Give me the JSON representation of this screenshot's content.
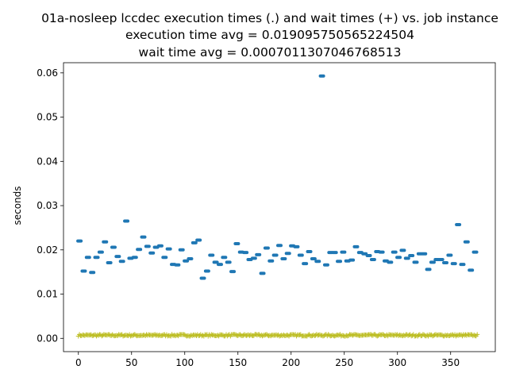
{
  "chart_data": {
    "type": "scatter",
    "title": [
      "01a-nosleep lccdec execution times (.) and wait times (+) vs. job instance",
      "execution time avg = 0.019095750565224504",
      "wait time avg = 0.0007011307046768513"
    ],
    "xlabel": "",
    "ylabel": "seconds",
    "xlim": [
      -14,
      392
    ],
    "ylim": [
      -0.003,
      0.0623
    ],
    "x_ticks": [
      0,
      50,
      100,
      150,
      200,
      250,
      300,
      350
    ],
    "y_ticks": [
      0.0,
      0.01,
      0.02,
      0.03,
      0.04,
      0.05,
      0.06
    ],
    "y_tick_labels": [
      "0.00",
      "0.01",
      "0.02",
      "0.03",
      "0.04",
      "0.05",
      "0.06"
    ],
    "grid": false,
    "series": [
      {
        "marker": ".",
        "color": "#1f77b4",
        "points": [
          [
            1,
            0.022
          ],
          [
            5,
            0.0152
          ],
          [
            9,
            0.0183
          ],
          [
            13,
            0.0149
          ],
          [
            17,
            0.0183
          ],
          [
            21,
            0.0195
          ],
          [
            25,
            0.0218
          ],
          [
            29,
            0.0171
          ],
          [
            33,
            0.0206
          ],
          [
            37,
            0.0185
          ],
          [
            41,
            0.0174
          ],
          [
            45,
            0.0265
          ],
          [
            49,
            0.0181
          ],
          [
            53,
            0.0183
          ],
          [
            57,
            0.0201
          ],
          [
            61,
            0.0229
          ],
          [
            65,
            0.0208
          ],
          [
            69,
            0.0193
          ],
          [
            73,
            0.0206
          ],
          [
            77,
            0.0209
          ],
          [
            81,
            0.0183
          ],
          [
            85,
            0.0202
          ],
          [
            89,
            0.0167
          ],
          [
            93,
            0.0166
          ],
          [
            97,
            0.02
          ],
          [
            101,
            0.0175
          ],
          [
            105,
            0.018
          ],
          [
            109,
            0.0216
          ],
          [
            113,
            0.0222
          ],
          [
            117,
            0.0136
          ],
          [
            121,
            0.0152
          ],
          [
            125,
            0.0188
          ],
          [
            129,
            0.0172
          ],
          [
            133,
            0.0167
          ],
          [
            137,
            0.0183
          ],
          [
            141,
            0.0172
          ],
          [
            145,
            0.0151
          ],
          [
            149,
            0.0214
          ],
          [
            153,
            0.0195
          ],
          [
            157,
            0.0194
          ],
          [
            161,
            0.0178
          ],
          [
            165,
            0.0181
          ],
          [
            169,
            0.0189
          ],
          [
            173,
            0.0147
          ],
          [
            177,
            0.0204
          ],
          [
            181,
            0.0175
          ],
          [
            185,
            0.0188
          ],
          [
            189,
            0.021
          ],
          [
            193,
            0.018
          ],
          [
            197,
            0.0192
          ],
          [
            201,
            0.0209
          ],
          [
            205,
            0.0207
          ],
          [
            209,
            0.0188
          ],
          [
            213,
            0.0169
          ],
          [
            217,
            0.0196
          ],
          [
            221,
            0.018
          ],
          [
            225,
            0.0174
          ],
          [
            229,
            0.0593
          ],
          [
            233,
            0.0166
          ],
          [
            237,
            0.0194
          ],
          [
            241,
            0.0194
          ],
          [
            245,
            0.0174
          ],
          [
            249,
            0.0195
          ],
          [
            253,
            0.0175
          ],
          [
            257,
            0.0177
          ],
          [
            261,
            0.0207
          ],
          [
            265,
            0.0194
          ],
          [
            269,
            0.0191
          ],
          [
            273,
            0.0187
          ],
          [
            277,
            0.0178
          ],
          [
            281,
            0.0196
          ],
          [
            285,
            0.0195
          ],
          [
            289,
            0.0175
          ],
          [
            293,
            0.0172
          ],
          [
            297,
            0.0195
          ],
          [
            301,
            0.0183
          ],
          [
            305,
            0.0199
          ],
          [
            309,
            0.0181
          ],
          [
            313,
            0.0187
          ],
          [
            317,
            0.0172
          ],
          [
            321,
            0.0191
          ],
          [
            325,
            0.0191
          ],
          [
            329,
            0.0156
          ],
          [
            333,
            0.0172
          ],
          [
            337,
            0.0178
          ],
          [
            341,
            0.0178
          ],
          [
            345,
            0.0171
          ],
          [
            349,
            0.0188
          ],
          [
            353,
            0.0169
          ],
          [
            357,
            0.0257
          ],
          [
            361,
            0.0167
          ],
          [
            365,
            0.0218
          ],
          [
            369,
            0.0154
          ],
          [
            373,
            0.0195
          ]
        ]
      },
      {
        "marker": "+",
        "color": "#bcbd22",
        "x_start": 0,
        "x_end": 375,
        "y_baseline": 0.0007,
        "y_jitter": 0.0004
      }
    ]
  }
}
